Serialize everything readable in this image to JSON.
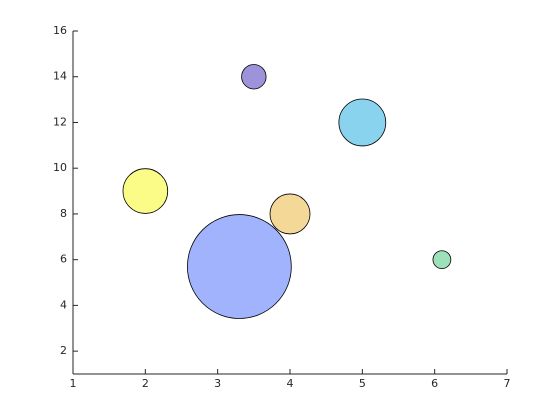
{
  "chart_data": {
    "type": "bubble",
    "x": [
      2,
      3.3,
      3.5,
      4,
      5,
      6.1
    ],
    "y": [
      9,
      5.7,
      14,
      8,
      12,
      6
    ],
    "sizes": [
      5,
      27,
      1.5,
      4,
      5.5,
      0.8
    ],
    "colors": [
      "#fbfb88",
      "#a0b3fc",
      "#9d93db",
      "#f4d898",
      "#8ad3ee",
      "#9ce1b9"
    ],
    "xlim": [
      1,
      7
    ],
    "xticks": [
      1,
      2,
      3,
      4,
      5,
      6,
      7
    ],
    "ylim": [
      1,
      16
    ],
    "yticks": [
      2,
      4,
      6,
      8,
      10,
      12,
      14,
      16
    ],
    "grid": false
  }
}
